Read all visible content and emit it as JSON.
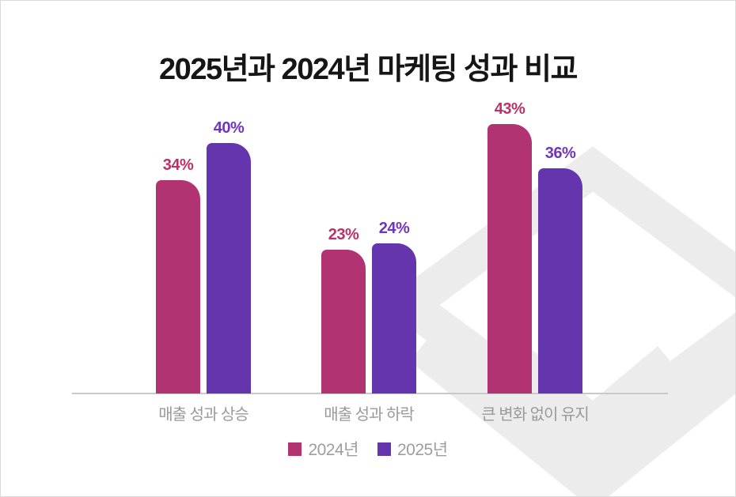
{
  "chart_data": {
    "type": "bar",
    "title": "2025년과 2024년 마케팅 성과 비교",
    "categories": [
      "매출 성과 상승",
      "매출 성과 하락",
      "큰 변화 없이 유지"
    ],
    "series": [
      {
        "name": "2024년",
        "color": "#b23371",
        "label_color": "#bc3069",
        "values": [
          34,
          23,
          43
        ]
      },
      {
        "name": "2025년",
        "color": "#6535ae",
        "label_color": "#7134be",
        "values": [
          40,
          24,
          36
        ]
      }
    ],
    "value_suffix": "%",
    "ylim": [
      0,
      50
    ],
    "grid": "off",
    "legend_position": "bottom",
    "axis_line_color": "#c9c9c9",
    "category_text_color": "#9a9a9a",
    "legend_text_color": "#9e9e9e",
    "title_color": "#151515",
    "watermark": {
      "name": "cube-box-logo",
      "color": "#ececec"
    }
  }
}
